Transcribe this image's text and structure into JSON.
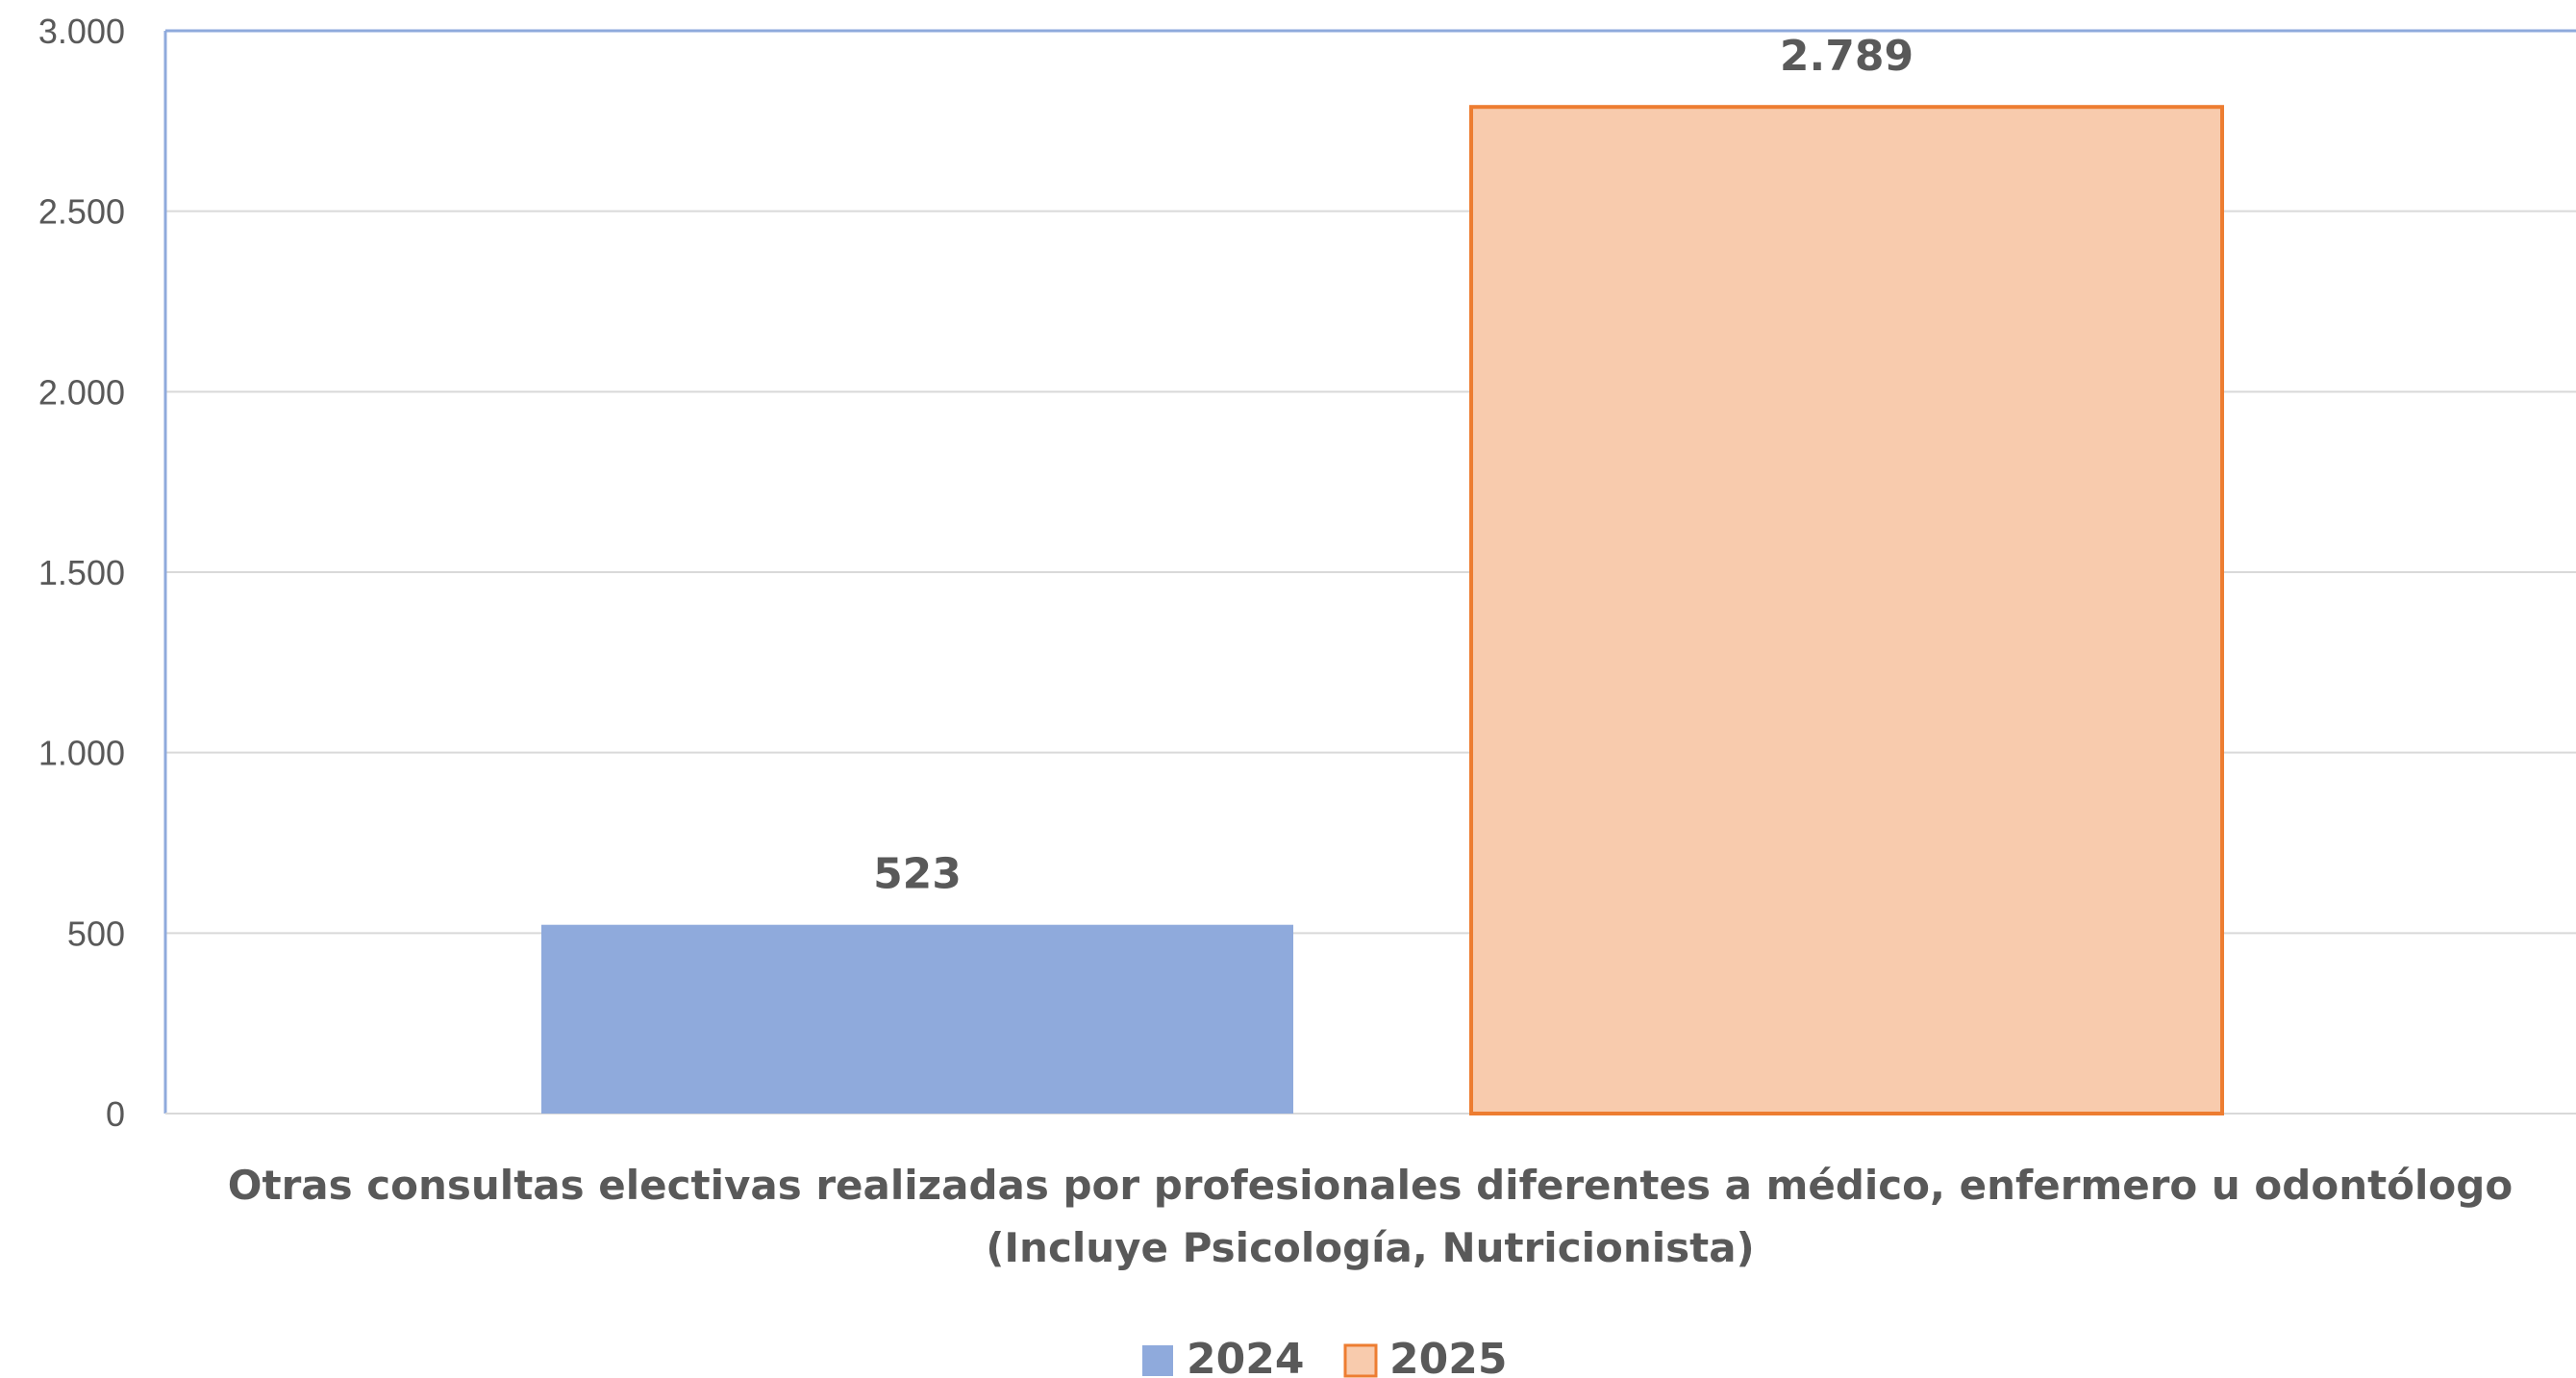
{
  "colors": {
    "series_2024": "#8faadc",
    "series_2025_fill": "#f8cbad",
    "series_2025_border": "#ed7d31",
    "axis": "#8faadc",
    "gridline": "#d9d9d9",
    "text": "#595959"
  },
  "chart_data": {
    "type": "bar",
    "categories": [
      "Otras consultas electivas realizadas por profesionales diferentes a médico, enfermero u odontólogo (Incluye Psicología, Nutricionista)"
    ],
    "category_label_lines": [
      "Otras consultas electivas realizadas por profesionales diferentes a médico, enfermero u odontólogo",
      "(Incluye Psicología, Nutricionista)"
    ],
    "series": [
      {
        "name": "2024",
        "values": [
          523
        ],
        "value_label": "523"
      },
      {
        "name": "2025",
        "values": [
          2789
        ],
        "value_label": "2.789"
      }
    ],
    "ylim": [
      0,
      3000
    ],
    "yticks": [
      0,
      500,
      1000,
      1500,
      2000,
      2500,
      3000
    ],
    "ytick_labels": [
      "0",
      "500",
      "1.000",
      "1.500",
      "2.000",
      "2.500",
      "3.000"
    ],
    "grid": true,
    "legend_position": "bottom",
    "title": "",
    "xlabel": "",
    "ylabel": ""
  }
}
